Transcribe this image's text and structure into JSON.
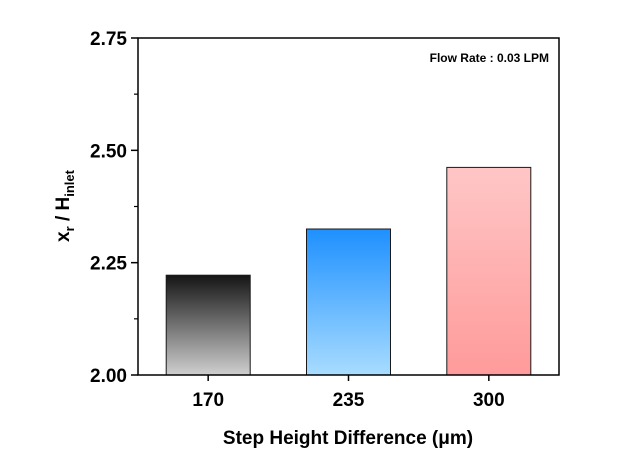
{
  "chart_data": {
    "type": "bar",
    "categories": [
      "170",
      "235",
      "300"
    ],
    "values": [
      2.222,
      2.325,
      2.462
    ],
    "ylim": [
      2.0,
      2.75
    ],
    "yticks": [
      "2.00",
      "2.25",
      "2.50",
      "2.75"
    ],
    "xlabel": "Step Height Difference (μm)",
    "ylabel": {
      "main": "x",
      "sub1": "r",
      "mid": " / H",
      "sub2": "inlet"
    },
    "annotation": "Flow Rate : 0.03 LPM",
    "grid": false,
    "bar_colors": [
      {
        "top": "#151515",
        "bottom": "#cfcfcf"
      },
      {
        "top": "#1e90ff",
        "bottom": "#a8dcff"
      },
      {
        "top": "#ffc6c6",
        "bottom": "#ff9a9a"
      }
    ]
  }
}
